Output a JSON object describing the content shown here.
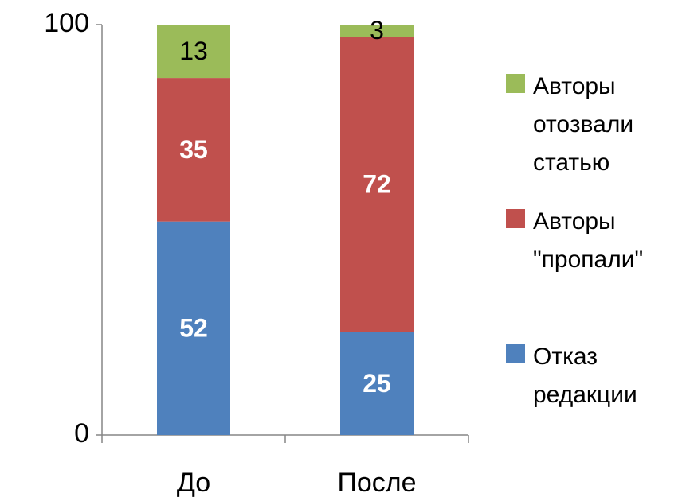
{
  "chart_data": {
    "type": "stacked_bar",
    "categories": [
      "До",
      "После"
    ],
    "series": [
      {
        "name": "Отказ редакции",
        "color": "#4f81bd",
        "label_color": "#ffffff",
        "values": [
          52,
          25
        ]
      },
      {
        "name": "Авторы \"пропали\"",
        "color": "#c0504d",
        "label_color": "#ffffff",
        "values": [
          35,
          72
        ]
      },
      {
        "name": "Авторы отозвали статью",
        "color": "#9bbb59",
        "label_color": "#000000",
        "values": [
          13,
          3
        ]
      }
    ],
    "ylim": [
      0,
      100
    ],
    "yticks": [
      0,
      100
    ],
    "grid": false,
    "legend": "right"
  }
}
